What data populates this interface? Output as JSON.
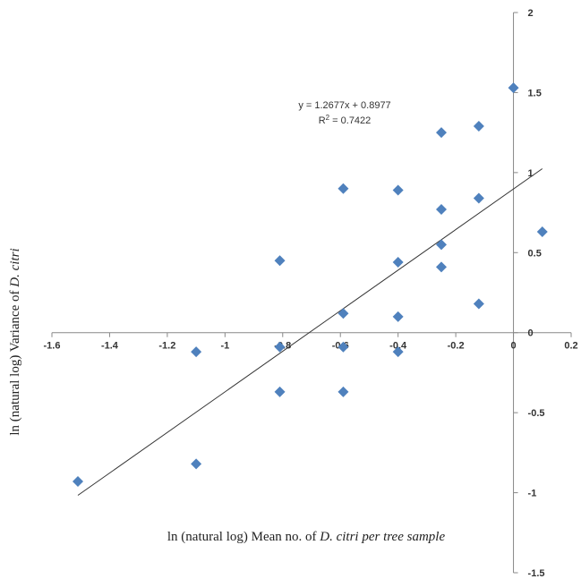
{
  "chart_data": {
    "type": "scatter",
    "xlim": [
      -1.6,
      0.2
    ],
    "ylim": [
      -1.5,
      2
    ],
    "x_ticks": [
      "-1.6",
      "-1.4",
      "-1.2",
      "-1",
      "-0.8",
      "-0.6",
      "-0.4",
      "-0.2",
      "0",
      "0.2"
    ],
    "x_tick_values": [
      -1.6,
      -1.4,
      -1.2,
      -1.0,
      -0.8,
      -0.6,
      -0.4,
      -0.2,
      0,
      0.2
    ],
    "y_ticks": [
      "-1.5",
      "-1",
      "-0.5",
      "0",
      "0.5",
      "1",
      "1.5",
      "2"
    ],
    "y_tick_values": [
      -1.5,
      -1,
      -0.5,
      0,
      0.5,
      1,
      1.5,
      2
    ],
    "grid": false,
    "marker_color": "#4F81BD",
    "trendline": {
      "slope": 1.2677,
      "intercept": 0.8977,
      "x_range": [
        -1.51,
        0.1
      ],
      "equation": "y = 1.2677x + 0.8977",
      "r2_prefix": "R",
      "r2_sup": "2",
      "r2_suffix": " = 0.7422"
    },
    "xlabel": {
      "prefix": "ln (natural log) Mean no. of ",
      "italic": "D. citri per tree sample"
    },
    "ylabel": {
      "prefix": "ln (natural log) Variance of ",
      "italic": "D. citri"
    },
    "points": [
      {
        "x": -1.51,
        "y": -0.93
      },
      {
        "x": -1.1,
        "y": -0.12
      },
      {
        "x": -1.1,
        "y": -0.82
      },
      {
        "x": -0.81,
        "y": 0.45
      },
      {
        "x": -0.81,
        "y": -0.09
      },
      {
        "x": -0.81,
        "y": -0.37
      },
      {
        "x": -0.59,
        "y": 0.9
      },
      {
        "x": -0.59,
        "y": 0.12
      },
      {
        "x": -0.59,
        "y": -0.09
      },
      {
        "x": -0.59,
        "y": -0.37
      },
      {
        "x": -0.4,
        "y": 0.89
      },
      {
        "x": -0.4,
        "y": 0.44
      },
      {
        "x": -0.4,
        "y": 0.1
      },
      {
        "x": -0.4,
        "y": -0.12
      },
      {
        "x": -0.25,
        "y": 1.25
      },
      {
        "x": -0.25,
        "y": 0.77
      },
      {
        "x": -0.25,
        "y": 0.55
      },
      {
        "x": -0.25,
        "y": 0.41
      },
      {
        "x": -0.12,
        "y": 1.29
      },
      {
        "x": -0.12,
        "y": 0.84
      },
      {
        "x": -0.12,
        "y": 0.18
      },
      {
        "x": 0.0,
        "y": 1.53
      },
      {
        "x": 0.1,
        "y": 0.63
      }
    ]
  }
}
